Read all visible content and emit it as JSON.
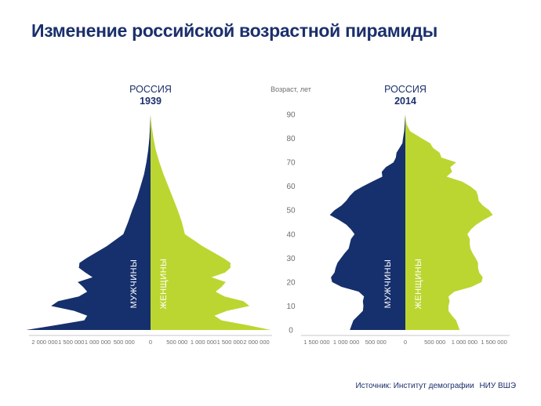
{
  "title": "Изменение российской возрастной пирамиды",
  "source": {
    "label": "Источник:",
    "text": "Институт демографии",
    "brand": "НИУ ВШЭ"
  },
  "colors": {
    "male": "#16306d",
    "female": "#bcd631",
    "text": "#1b2f6b",
    "axis": "#6d6e71"
  },
  "chart_data": [
    {
      "type": "population_pyramid",
      "title": "РОССИЯ",
      "subtitle": "1939",
      "male_label": "МУЖЧИНЫ",
      "female_label": "ЖЕНЩИНЫ",
      "age_label": "Возраст, лет",
      "age_ticks": [
        0,
        10,
        20,
        30,
        40,
        50,
        60,
        70,
        80,
        90
      ],
      "x_ticks": [
        "2 000 000",
        "1 500 000",
        "1 000 000",
        "500 000",
        "0",
        "500 000",
        "1 000 000",
        "1 500 000",
        "2 000 000"
      ],
      "xlim": [
        0,
        2000000
      ],
      "ylim": [
        0,
        90
      ],
      "ages": [
        0,
        2,
        4,
        6,
        8,
        10,
        12,
        14,
        16,
        18,
        20,
        22,
        24,
        26,
        28,
        30,
        35,
        40,
        45,
        50,
        55,
        60,
        65,
        70,
        75,
        80,
        85,
        88,
        90
      ],
      "male": [
        2100000,
        1600000,
        1120000,
        1070000,
        1290000,
        1680000,
        1560000,
        1210000,
        1070000,
        1140000,
        1230000,
        980000,
        1100000,
        1210000,
        1200000,
        1080000,
        740000,
        460000,
        380000,
        310000,
        230000,
        170000,
        110000,
        70000,
        40000,
        20000,
        8000,
        3000,
        0
      ],
      "female": [
        2030000,
        1640000,
        1200000,
        1080000,
        1290000,
        1670000,
        1570000,
        1250000,
        1100000,
        1200000,
        1270000,
        1030000,
        1260000,
        1350000,
        1350000,
        1230000,
        880000,
        580000,
        530000,
        460000,
        380000,
        300000,
        220000,
        150000,
        90000,
        50000,
        20000,
        8000,
        0
      ]
    },
    {
      "type": "population_pyramid",
      "title": "РОССИЯ",
      "subtitle": "2014",
      "male_label": "МУЖЧИНЫ",
      "female_label": "ЖЕНЩИНЫ",
      "age_label": "Возраст, лет",
      "age_ticks": [
        0,
        10,
        20,
        30,
        40,
        50,
        60,
        70,
        80,
        90
      ],
      "x_ticks": [
        "1 500 000",
        "1 000 000",
        "500 000",
        "0",
        "500 000",
        "1 000 000",
        "1 500 000"
      ],
      "xlim": [
        0,
        1500000
      ],
      "ylim": [
        0,
        90
      ],
      "ages": [
        0,
        2,
        4,
        6,
        8,
        10,
        12,
        14,
        16,
        18,
        20,
        22,
        24,
        26,
        28,
        30,
        32,
        34,
        36,
        38,
        40,
        42,
        44,
        46,
        48,
        50,
        52,
        54,
        56,
        58,
        60,
        62,
        64,
        66,
        68,
        70,
        72,
        74,
        76,
        78,
        80,
        83,
        86,
        90
      ],
      "male": [
        940000,
        910000,
        880000,
        800000,
        720000,
        710000,
        720000,
        700000,
        790000,
        1080000,
        1240000,
        1260000,
        1200000,
        1180000,
        1150000,
        1090000,
        1030000,
        960000,
        940000,
        920000,
        860000,
        920000,
        1000000,
        1130000,
        1280000,
        1200000,
        1080000,
        1000000,
        940000,
        860000,
        720000,
        560000,
        390000,
        400000,
        330000,
        200000,
        160000,
        150000,
        100000,
        50000,
        40000,
        20000,
        10000,
        0
      ],
      "female": [
        920000,
        890000,
        860000,
        790000,
        730000,
        730000,
        750000,
        730000,
        830000,
        1120000,
        1290000,
        1310000,
        1250000,
        1230000,
        1230000,
        1190000,
        1140000,
        1100000,
        1090000,
        1090000,
        1050000,
        1110000,
        1200000,
        1330000,
        1480000,
        1420000,
        1310000,
        1240000,
        1230000,
        1200000,
        1100000,
        960000,
        700000,
        790000,
        760000,
        860000,
        610000,
        580000,
        470000,
        420000,
        280000,
        80000,
        20000,
        0
      ]
    }
  ]
}
